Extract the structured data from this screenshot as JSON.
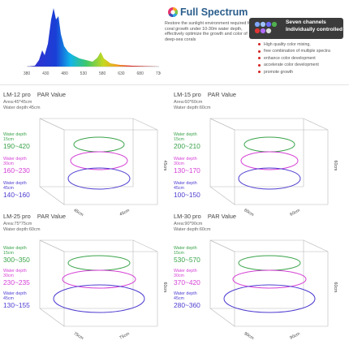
{
  "spectrum": {
    "x_ticks": [
      "380",
      "430",
      "480",
      "530",
      "580",
      "630",
      "680",
      "730"
    ],
    "colors": {
      "blue": "#1a3fd6",
      "cyan": "#12b4e8",
      "green": "#5cc640",
      "yellow": "#e6d21a",
      "red": "#e02a20"
    }
  },
  "full_spectrum": {
    "title": "Full Spectrum",
    "description": "Restore the sunlight environment required for coral growth under 10-30m water depth, effectively optimize the growth and color of deep-sea corals"
  },
  "channels": {
    "title_line1": "Seven channels",
    "title_line2": "Individually controlled",
    "dot_colors": [
      "#7fa7ff",
      "#9fc4ff",
      "#6b6bff",
      "#4fb04f",
      "#e03535",
      "#b06cff",
      "#dddddd"
    ],
    "features": [
      "High quality color mixing,",
      "free combination of multiple spectra",
      "enhance color development",
      "accelerate color development",
      "promote growth"
    ]
  },
  "par_label": "PAR Value",
  "models": [
    {
      "name": "LM-12 pro",
      "area": "Area:45*45cm",
      "depth": "Water depth:45cm",
      "w": "45cm",
      "d": "45cm",
      "h": "45cm",
      "l15a": "Water depth",
      "l15b": "15cm",
      "v15": "190~420",
      "l30a": "Water depth",
      "l30b": "30cm",
      "v30": "160~230",
      "l45a": "Water depth",
      "l45b": "45cm",
      "v45": "140~160"
    },
    {
      "name": "LM-15 pro",
      "area": "Area:60*60cm",
      "depth": "Water depth:60cm",
      "w": "60cm",
      "d": "60cm",
      "h": "60cm",
      "l15a": "Water depth",
      "l15b": "15cm",
      "v15": "200~210",
      "l30a": "Water depth",
      "l30b": "30cm",
      "v30": "130~170",
      "l45a": "Water depth",
      "l45b": "45cm",
      "v45": "100~150"
    },
    {
      "name": "LM-25 pro",
      "area": "Area:75*75cm",
      "depth": "Water depth:60cm",
      "w": "75cm",
      "d": "75cm",
      "h": "60cm",
      "l15a": "Water depth",
      "l15b": "15cm",
      "v15": "300~350",
      "l30a": "Water depth",
      "l30b": "30cm",
      "v30": "230~235",
      "l45a": "Water depth",
      "l45b": "45cm",
      "v45": "130~155"
    },
    {
      "name": "LM-30 pro",
      "area": "Area:90*90cm",
      "depth": "Water depth:60cm",
      "w": "90cm",
      "d": "90cm",
      "h": "60cm",
      "l15a": "Water depth",
      "l15b": "15cm",
      "v15": "530~570",
      "l30a": "Water depth",
      "l30b": "30cm",
      "v30": "370~420",
      "l45a": "Water depth",
      "l45b": "45cm",
      "v45": "280~360"
    }
  ]
}
